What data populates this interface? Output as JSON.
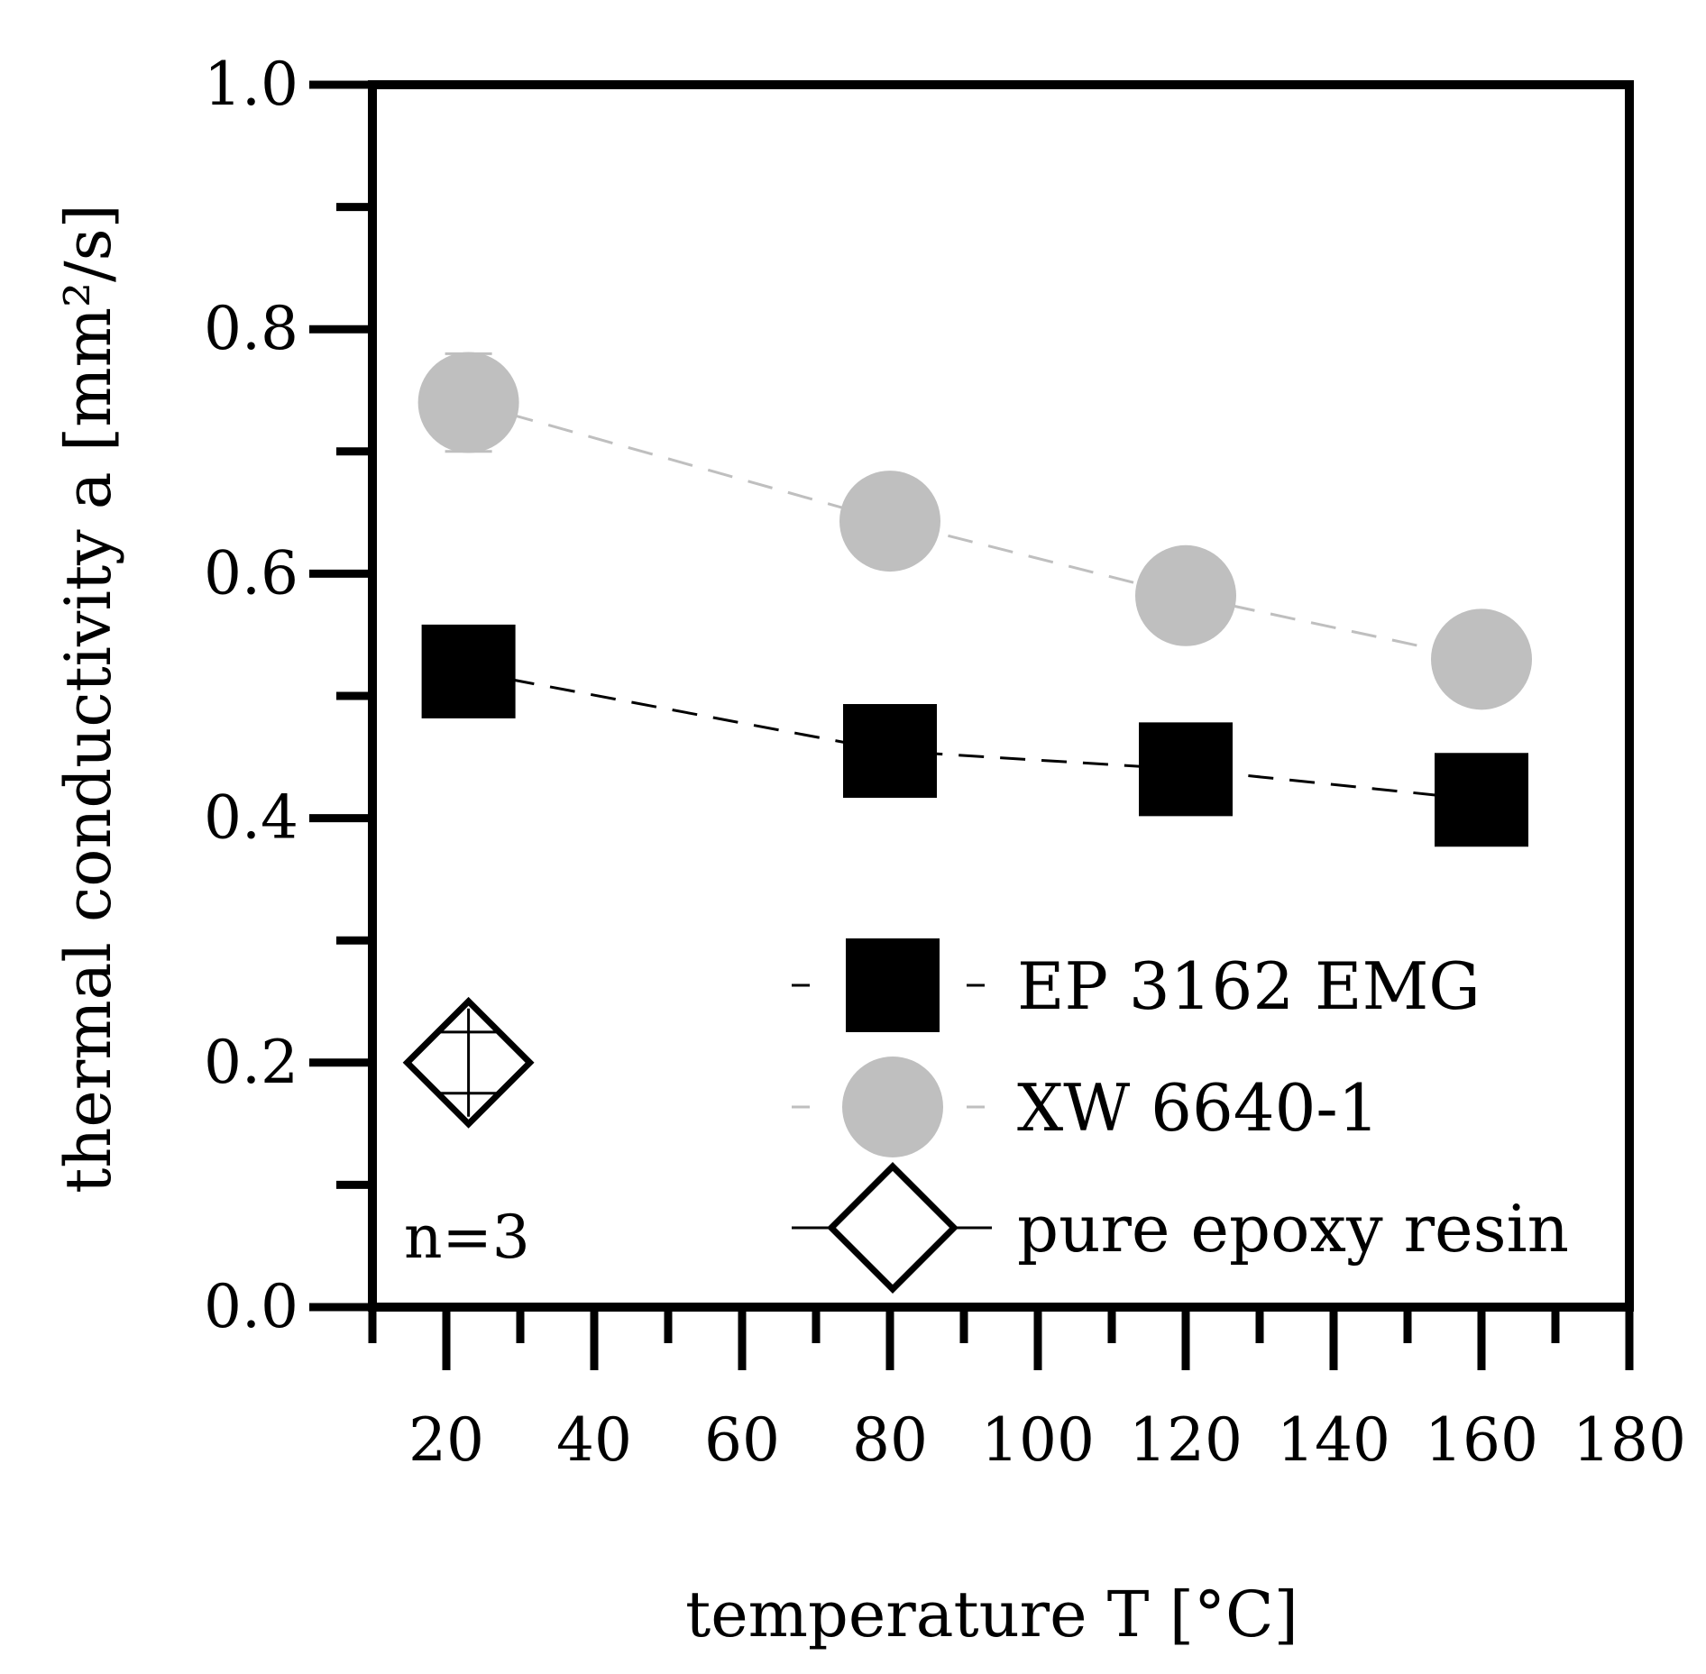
{
  "chart_data": {
    "type": "scatter",
    "title": "",
    "xlabel": "temperature T [°C]",
    "ylabel": "thermal conductivity a [mm²/s]",
    "xlim": [
      10,
      180
    ],
    "ylim": [
      0,
      1.0
    ],
    "x_ticks": [
      20,
      40,
      60,
      80,
      100,
      120,
      140,
      160,
      180
    ],
    "x_tick_labels": [
      "20",
      "40",
      "60",
      "80",
      "100",
      "120",
      "140",
      "160",
      "180"
    ],
    "y_ticks": [
      0.0,
      0.2,
      0.4,
      0.6,
      0.8,
      1.0
    ],
    "y_tick_labels": [
      "0.0",
      "0.2",
      "0.4",
      "0.6",
      "0.8",
      "1.0"
    ],
    "grid": false,
    "legend_position": "bottom-right",
    "annotation": "n=3",
    "series": [
      {
        "name": "EP 3162 EMG",
        "marker": "square",
        "line": "dashed",
        "color": "#000000",
        "x": [
          23,
          80,
          120,
          160
        ],
        "y": [
          0.52,
          0.455,
          0.44,
          0.415
        ],
        "y_err": [
          0.0,
          0.0,
          0.0,
          0.0
        ]
      },
      {
        "name": "XW 6640-1",
        "marker": "circle",
        "line": "dashed",
        "color": "#bfbfbf",
        "x": [
          23,
          80,
          120,
          160
        ],
        "y": [
          0.74,
          0.643,
          0.582,
          0.53
        ],
        "y_err": [
          0.04,
          0.0,
          0.0,
          0.0
        ]
      },
      {
        "name": "pure epoxy resin",
        "marker": "diamond",
        "line": "solid",
        "color": "#000000",
        "x": [
          23
        ],
        "y": [
          0.2
        ],
        "y_err": [
          0.025
        ]
      }
    ]
  }
}
